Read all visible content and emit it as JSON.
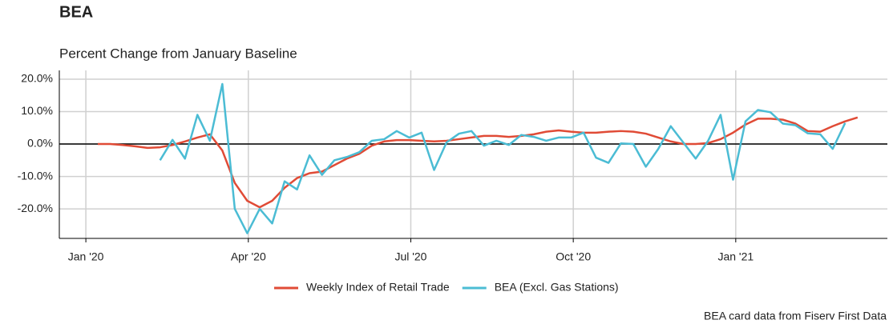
{
  "chart_data": {
    "type": "line",
    "title": "BEA",
    "subtitle": "Percent Change from January Baseline",
    "caption": "BEA card data from Fiserv First Data",
    "x": [
      0.22,
      0.45,
      0.68,
      0.91,
      1.14,
      1.37,
      1.6,
      1.83,
      2.06,
      2.29,
      2.52,
      2.75,
      2.98,
      3.21,
      3.44,
      3.67,
      3.9,
      4.13,
      4.36,
      4.59,
      4.82,
      5.05,
      5.28,
      5.51,
      5.74,
      5.97,
      6.2,
      6.43,
      6.66,
      6.89,
      7.12,
      7.35,
      7.58,
      7.81,
      8.04,
      8.27,
      8.5,
      8.73,
      8.96,
      9.19,
      9.42,
      9.65,
      9.88,
      10.11,
      10.34,
      10.57,
      10.8,
      11.03,
      11.26,
      11.49,
      11.72,
      11.95,
      12.18,
      12.41,
      12.64,
      12.87,
      13.1,
      13.33,
      13.56,
      13.79,
      14.02,
      14.25
    ],
    "series": [
      {
        "name": "Weekly Index of Retail Trade",
        "color": "#e04b36",
        "values": [
          0,
          0,
          -0.3,
          -0.7,
          -1.2,
          -1,
          -0.3,
          0.8,
          2,
          3,
          -2,
          -12,
          -17.5,
          -19.5,
          -17.5,
          -13.5,
          -10.5,
          -9,
          -8.5,
          -6.5,
          -4.5,
          -3,
          -0.5,
          0.8,
          1.2,
          1.2,
          1,
          0.8,
          1,
          1.5,
          2,
          2.5,
          2.5,
          2.2,
          2.5,
          3,
          3.8,
          4.2,
          3.8,
          3.5,
          3.5,
          3.8,
          4,
          3.8,
          3.2,
          2,
          0.8,
          0,
          0,
          0.3,
          1.5,
          3.5,
          6,
          7.8,
          7.8,
          7.5,
          6.3,
          4,
          3.8,
          5.5,
          7,
          8.2
        ]
      },
      {
        "name": "BEA (Excl. Gas Stations)",
        "color": "#4bbcd4",
        "values": [
          null,
          null,
          null,
          null,
          null,
          -5,
          1.3,
          -4.5,
          9,
          1,
          18.5,
          -20,
          -27.5,
          -20,
          -24.5,
          -11.5,
          -14,
          -3.5,
          -9.5,
          -5,
          -4,
          -2.5,
          1,
          1.5,
          4,
          2,
          3.5,
          -8,
          0.5,
          3.2,
          4,
          -0.5,
          1,
          -0.3,
          2.8,
          2.2,
          1,
          2,
          2,
          3.5,
          -4.2,
          -5.8,
          0.2,
          0,
          -7,
          -1.5,
          5.5,
          0.5,
          -4.5,
          1,
          9,
          -11,
          7,
          10.5,
          9.8,
          6.3,
          5.8,
          3.3,
          3,
          -1.5,
          6.5,
          null
        ]
      }
    ],
    "xlim": [
      -0.49,
      14.8
    ],
    "xticks": [
      {
        "value": 0,
        "label": "Jan '20"
      },
      {
        "value": 3,
        "label": "Apr '20"
      },
      {
        "value": 6,
        "label": "Jul '20"
      },
      {
        "value": 9,
        "label": "Oct '20"
      },
      {
        "value": 12,
        "label": "Jan '21"
      }
    ],
    "ylim": [
      -29.1,
      22.7
    ],
    "yticks": [
      {
        "value": -20,
        "label": "-20.0%"
      },
      {
        "value": -10,
        "label": "-10.0%"
      },
      {
        "value": 0,
        "label": "0.0%"
      },
      {
        "value": 10,
        "label": "10.0%"
      },
      {
        "value": 20,
        "label": "20.0%"
      }
    ],
    "grid": true,
    "legend": "bottom"
  }
}
